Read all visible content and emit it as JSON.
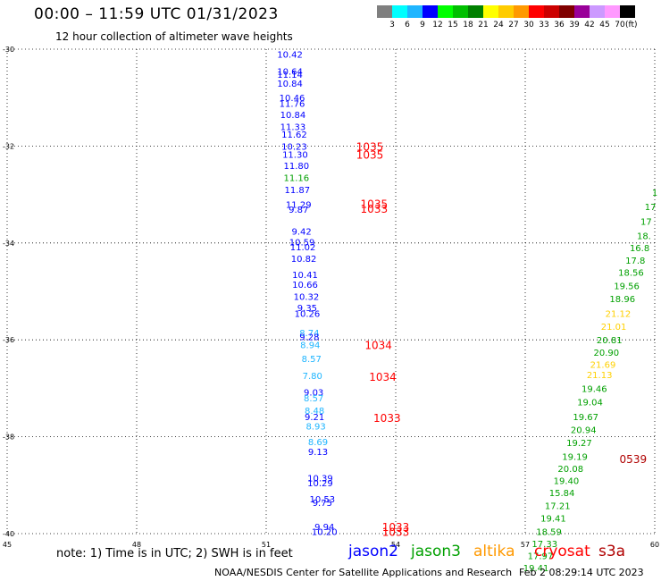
{
  "header": {
    "title": "00:00 – 11:59 UTC 01/31/2023",
    "subtitle": "12 hour collection of altimeter wave heights"
  },
  "color_scale": {
    "labels": [
      "3",
      "6",
      "9",
      "12",
      "15",
      "18",
      "21",
      "24",
      "27",
      "30",
      "33",
      "36",
      "39",
      "42",
      "45",
      "70"
    ],
    "units": "(ft)",
    "colors": [
      "#7f7f7f",
      "#00ffff",
      "#1fb5ff",
      "#0000ff",
      "#00ff00",
      "#00c000",
      "#008000",
      "#ffff00",
      "#ffcc00",
      "#ff9900",
      "#ff0000",
      "#cc0000",
      "#800000",
      "#990099",
      "#cc99ff",
      "#ff99ff",
      "#000000"
    ]
  },
  "map": {
    "lat_labels": [
      "-30",
      "-32",
      "-34",
      "-36",
      "-38",
      "-40"
    ],
    "lon_labels": [
      "45",
      "48",
      "51",
      "54",
      "57",
      "60"
    ],
    "lat_values": [
      -30,
      -32,
      -34,
      -36,
      -38,
      -40
    ],
    "lon_values": [
      45,
      48,
      51,
      54,
      57,
      60
    ],
    "tracks": [
      {
        "satellite": "jason2",
        "points": [
          {
            "lon": 51.55,
            "lat": -30.1,
            "swh": "10.42",
            "color": "#0000ff"
          },
          {
            "lon": 51.55,
            "lat": -30.45,
            "swh": "10.64",
            "color": "#0000ff"
          },
          {
            "lon": 51.55,
            "lat": -30.52,
            "swh": "11.14",
            "color": "#0000ff"
          },
          {
            "lon": 51.55,
            "lat": -30.7,
            "swh": "10.84",
            "color": "#0000ff"
          },
          {
            "lon": 51.6,
            "lat": -31.0,
            "swh": "10.46",
            "color": "#0000ff"
          },
          {
            "lon": 51.6,
            "lat": -31.12,
            "swh": "11.76",
            "color": "#0000ff"
          },
          {
            "lon": 51.62,
            "lat": -31.35,
            "swh": "10.84",
            "color": "#0000ff"
          },
          {
            "lon": 51.62,
            "lat": -31.6,
            "swh": "11.33",
            "color": "#0000ff"
          },
          {
            "lon": 51.65,
            "lat": -31.75,
            "swh": "11.62",
            "color": "#0000ff"
          },
          {
            "lon": 51.65,
            "lat": -32.0,
            "swh": "10.23",
            "color": "#0000ff"
          },
          {
            "lon": 51.67,
            "lat": -32.17,
            "swh": "11.30",
            "color": "#0000ff"
          },
          {
            "lon": 51.7,
            "lat": -32.4,
            "swh": "11.80",
            "color": "#0000ff"
          },
          {
            "lon": 51.7,
            "lat": -32.65,
            "swh": "11.16",
            "color": "#00a000"
          },
          {
            "lon": 51.72,
            "lat": -32.9,
            "swh": "11.87",
            "color": "#0000ff"
          },
          {
            "lon": 51.75,
            "lat": -33.2,
            "swh": "11.29",
            "color": "#0000ff"
          },
          {
            "lon": 51.75,
            "lat": -33.3,
            "swh": "9.87",
            "color": "#0000ff"
          },
          {
            "lon": 51.82,
            "lat": -33.75,
            "swh": "9.42",
            "color": "#0000ff"
          },
          {
            "lon": 51.83,
            "lat": -33.98,
            "swh": "10.59",
            "color": "#0000ff"
          },
          {
            "lon": 51.85,
            "lat": -34.08,
            "swh": "11.02",
            "color": "#0000ff"
          },
          {
            "lon": 51.87,
            "lat": -34.32,
            "swh": "10.82",
            "color": "#0000ff"
          },
          {
            "lon": 51.9,
            "lat": -34.65,
            "swh": "10.41",
            "color": "#0000ff"
          },
          {
            "lon": 51.9,
            "lat": -34.85,
            "swh": "10.66",
            "color": "#0000ff"
          },
          {
            "lon": 51.93,
            "lat": -35.1,
            "swh": "10.32",
            "color": "#0000ff"
          },
          {
            "lon": 51.95,
            "lat": -35.33,
            "swh": "9.35",
            "color": "#0000ff"
          },
          {
            "lon": 51.95,
            "lat": -35.45,
            "swh": "10.26",
            "color": "#0000ff"
          },
          {
            "lon": 52.0,
            "lat": -35.85,
            "swh": "8.74",
            "color": "#1fb5ff"
          },
          {
            "lon": 52.0,
            "lat": -35.93,
            "swh": "9.28",
            "color": "#0000ff"
          },
          {
            "lon": 52.02,
            "lat": -36.1,
            "swh": "8.94",
            "color": "#1fb5ff"
          },
          {
            "lon": 52.05,
            "lat": -36.38,
            "swh": "8.57",
            "color": "#1fb5ff"
          },
          {
            "lon": 52.07,
            "lat": -36.73,
            "swh": "7.80",
            "color": "#1fb5ff"
          },
          {
            "lon": 52.1,
            "lat": -37.08,
            "swh": "9.03",
            "color": "#0000ff"
          },
          {
            "lon": 52.1,
            "lat": -37.2,
            "swh": "8.57",
            "color": "#1fb5ff"
          },
          {
            "lon": 52.12,
            "lat": -37.45,
            "swh": "8.48",
            "color": "#1fb5ff"
          },
          {
            "lon": 52.12,
            "lat": -37.58,
            "swh": "9.21",
            "color": "#0000ff"
          },
          {
            "lon": 52.15,
            "lat": -37.78,
            "swh": "8.93",
            "color": "#1fb5ff"
          },
          {
            "lon": 52.2,
            "lat": -38.1,
            "swh": "8.69",
            "color": "#1fb5ff"
          },
          {
            "lon": 52.2,
            "lat": -38.3,
            "swh": "9.13",
            "color": "#0000ff"
          },
          {
            "lon": 52.25,
            "lat": -38.85,
            "swh": "10.39",
            "color": "#0000ff"
          },
          {
            "lon": 52.25,
            "lat": -38.95,
            "swh": "10.29",
            "color": "#0000ff"
          },
          {
            "lon": 52.3,
            "lat": -39.28,
            "swh": "10.53",
            "color": "#0000ff"
          },
          {
            "lon": 52.3,
            "lat": -39.35,
            "swh": "9.75",
            "color": "#0000ff"
          },
          {
            "lon": 52.35,
            "lat": -39.85,
            "swh": "9.94",
            "color": "#0000ff"
          },
          {
            "lon": 52.35,
            "lat": -39.95,
            "swh": "10.20",
            "color": "#0000ff"
          }
        ]
      },
      {
        "satellite": "jason3",
        "points": [
          {
            "lon": 60.0,
            "lat": -32.95,
            "swh": "1",
            "color": "#00a000"
          },
          {
            "lon": 59.9,
            "lat": -33.25,
            "swh": "17",
            "color": "#00a000"
          },
          {
            "lon": 59.8,
            "lat": -33.55,
            "swh": "17",
            "color": "#00a000"
          },
          {
            "lon": 59.75,
            "lat": -33.85,
            "swh": "18.",
            "color": "#00a000"
          },
          {
            "lon": 59.65,
            "lat": -34.1,
            "swh": "16.8",
            "color": "#00a000"
          },
          {
            "lon": 59.55,
            "lat": -34.35,
            "swh": "17.8",
            "color": "#00a000"
          },
          {
            "lon": 59.45,
            "lat": -34.6,
            "swh": "18.56",
            "color": "#00a000"
          },
          {
            "lon": 59.35,
            "lat": -34.88,
            "swh": "19.56",
            "color": "#00a000"
          },
          {
            "lon": 59.25,
            "lat": -35.15,
            "swh": "18.96",
            "color": "#00a000"
          },
          {
            "lon": 59.15,
            "lat": -35.45,
            "swh": "21.12",
            "color": "#ffd000"
          },
          {
            "lon": 59.05,
            "lat": -35.72,
            "swh": "21.01",
            "color": "#ffd000"
          },
          {
            "lon": 58.95,
            "lat": -36.0,
            "swh": "20.81",
            "color": "#00a000"
          },
          {
            "lon": 58.88,
            "lat": -36.25,
            "swh": "20.90",
            "color": "#00a000"
          },
          {
            "lon": 58.8,
            "lat": -36.5,
            "swh": "21.69",
            "color": "#ffd000"
          },
          {
            "lon": 58.72,
            "lat": -36.72,
            "swh": "21.13",
            "color": "#ffd000"
          },
          {
            "lon": 58.6,
            "lat": -37.0,
            "swh": "19.46",
            "color": "#00a000"
          },
          {
            "lon": 58.5,
            "lat": -37.28,
            "swh": "19.04",
            "color": "#00a000"
          },
          {
            "lon": 58.4,
            "lat": -37.58,
            "swh": "19.67",
            "color": "#00a000"
          },
          {
            "lon": 58.35,
            "lat": -37.85,
            "swh": "20.94",
            "color": "#00a000"
          },
          {
            "lon": 58.25,
            "lat": -38.12,
            "swh": "19.27",
            "color": "#00a000"
          },
          {
            "lon": 58.15,
            "lat": -38.4,
            "swh": "19.19",
            "color": "#00a000"
          },
          {
            "lon": 58.05,
            "lat": -38.65,
            "swh": "20.08",
            "color": "#00a000"
          },
          {
            "lon": 57.95,
            "lat": -38.9,
            "swh": "19.40",
            "color": "#00a000"
          },
          {
            "lon": 57.85,
            "lat": -39.15,
            "swh": "15.84",
            "color": "#00a000"
          },
          {
            "lon": 57.75,
            "lat": -39.42,
            "swh": "17.21",
            "color": "#00a000"
          },
          {
            "lon": 57.65,
            "lat": -39.68,
            "swh": "19.41",
            "color": "#00a000"
          },
          {
            "lon": 57.55,
            "lat": -39.95,
            "swh": "18.59",
            "color": "#00a000"
          },
          {
            "lon": 57.45,
            "lat": -40.2,
            "swh": "17.33",
            "color": "#00a000"
          },
          {
            "lon": 57.35,
            "lat": -40.45,
            "swh": "17.97",
            "color": "#00a000"
          },
          {
            "lon": 57.25,
            "lat": -40.7,
            "swh": "19.41",
            "color": "#00a000"
          }
        ]
      }
    ],
    "time_labels": [
      {
        "lon": 53.4,
        "lat": -32.0,
        "text": "1035",
        "color": "#ff0000"
      },
      {
        "lon": 53.4,
        "lat": -32.17,
        "text": "1035",
        "color": "#ff0000"
      },
      {
        "lon": 53.5,
        "lat": -33.18,
        "text": "1035",
        "color": "#ff0000"
      },
      {
        "lon": 53.5,
        "lat": -33.28,
        "text": "1033",
        "color": "#ff0000"
      },
      {
        "lon": 53.6,
        "lat": -36.1,
        "text": "1034",
        "color": "#ff0000"
      },
      {
        "lon": 53.7,
        "lat": -36.75,
        "text": "1034",
        "color": "#ff0000"
      },
      {
        "lon": 53.8,
        "lat": -37.6,
        "text": "1033",
        "color": "#ff0000"
      },
      {
        "lon": 54.0,
        "lat": -39.85,
        "text": "1033",
        "color": "#ff0000"
      },
      {
        "lon": 54.0,
        "lat": -39.95,
        "text": "1033",
        "color": "#ff0000"
      },
      {
        "lon": 59.5,
        "lat": -38.45,
        "text": "0539",
        "color": "#b00000"
      }
    ]
  },
  "footer": {
    "note": "note: 1) Time is in UTC; 2) SWH is in feet",
    "satellites": [
      {
        "name": "jason2",
        "color": "#0000ff"
      },
      {
        "name": "jason3",
        "color": "#00a000"
      },
      {
        "name": "altika",
        "color": "#ff9900"
      },
      {
        "name": "cryosat",
        "color": "#ff0000"
      },
      {
        "name": "s3a",
        "color": "#b00000"
      }
    ],
    "credit": "NOAA/NESDIS Center for Satellite Applications and Research",
    "generated": "Feb  2 08:29:14 UTC 2023"
  }
}
